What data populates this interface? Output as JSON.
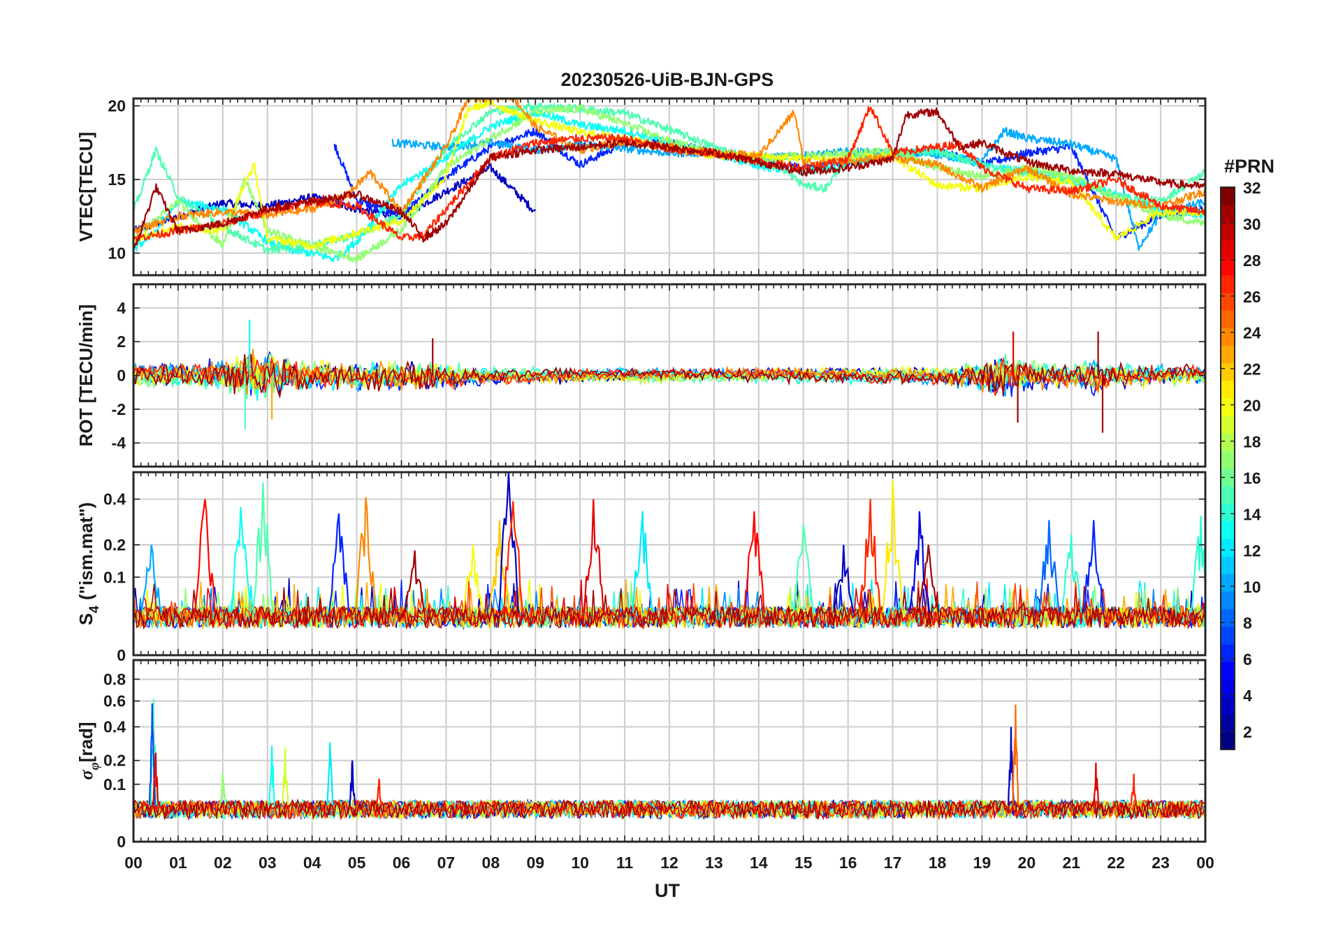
{
  "chart_data": [
    {
      "type": "line",
      "panel": "vtec",
      "title": "20230526-UiB-BJN-GPS",
      "ylabel": "VTEC[TECU]",
      "ylim": [
        8.5,
        20.5
      ],
      "yticks": [
        10,
        15,
        20
      ],
      "ytick_labels": [
        "10",
        "15",
        "20"
      ],
      "xlim": [
        0,
        24
      ],
      "grid": true,
      "series": [
        {
          "name": "PRN 3",
          "prn": 3,
          "x": [
            0,
            1,
            2,
            3,
            4,
            5,
            6,
            7,
            8,
            9
          ],
          "values": [
            11.5,
            12.5,
            13.4,
            13.2,
            13.8,
            13.0,
            12.5,
            14.2,
            15.8,
            12.8
          ]
        },
        {
          "name": "PRN 6",
          "prn": 6,
          "x": [
            4.5,
            5,
            6,
            7,
            8,
            9,
            10,
            11,
            12,
            13,
            14,
            15,
            16,
            17,
            18,
            19,
            20,
            21,
            22,
            23,
            24
          ],
          "values": [
            17.4,
            13.6,
            12.5,
            15.2,
            17.2,
            18.3,
            16.0,
            17.5,
            17.5,
            16.8,
            16.4,
            15.8,
            16.2,
            16.7,
            17.0,
            16.0,
            16.8,
            17.2,
            11.0,
            12.6,
            13.0
          ]
        },
        {
          "name": "PRN 10",
          "prn": 10,
          "x": [
            5.8,
            7,
            8,
            9,
            10,
            11,
            12,
            13,
            14,
            15,
            16,
            17,
            18,
            19,
            19.5,
            20,
            21,
            22,
            22.5,
            23,
            24
          ],
          "values": [
            17.5,
            17.2,
            17.5,
            17.0,
            17.4,
            17.1,
            16.8,
            16.8,
            16.5,
            16.6,
            16.9,
            16.8,
            16.7,
            16.2,
            18.3,
            17.8,
            17.4,
            16.4,
            10.4,
            12.6,
            13.5
          ]
        },
        {
          "name": "PRN 13",
          "prn": 13,
          "x": [
            0,
            0.5,
            1,
            2,
            3,
            3.5,
            4,
            4.5,
            5,
            6,
            7,
            8,
            9,
            10,
            11,
            12,
            13,
            14,
            15,
            16,
            17,
            18,
            19,
            20,
            21,
            22,
            23,
            24
          ],
          "values": [
            10.2,
            11.5,
            13.5,
            13.0,
            10.8,
            10.2,
            10.0,
            9.6,
            10.8,
            14.6,
            16.5,
            18.6,
            19.6,
            18.7,
            18.3,
            17.5,
            16.8,
            15.9,
            15.5,
            16.0,
            16.8,
            16.9,
            16.0,
            15.5,
            15.0,
            14.0,
            13.0,
            12.6
          ]
        },
        {
          "name": "PRN 15",
          "prn": 15,
          "x": [
            0,
            0.5,
            1,
            2,
            3,
            4,
            5,
            6,
            7,
            8,
            9,
            10,
            11,
            12,
            13,
            14,
            14.5,
            15,
            15.5,
            16,
            17,
            18,
            19,
            20,
            21,
            22,
            23,
            24
          ],
          "values": [
            12.8,
            17.0,
            13.8,
            11.8,
            10.2,
            10.6,
            11.2,
            12.6,
            17.2,
            19.6,
            20.0,
            19.8,
            19.5,
            18.4,
            17.2,
            16.3,
            15.8,
            14.6,
            14.4,
            16.6,
            16.7,
            16.9,
            16.0,
            15.4,
            14.9,
            13.9,
            13.5,
            15.5
          ]
        },
        {
          "name": "PRN 17",
          "prn": 17,
          "x": [
            0,
            1,
            2,
            2.5,
            3,
            4,
            5,
            6,
            7,
            8,
            9,
            10,
            11,
            12,
            13,
            14,
            15,
            16,
            17,
            18,
            19,
            20,
            21,
            22,
            23,
            24
          ],
          "values": [
            11.0,
            13.5,
            10.5,
            15.0,
            11.5,
            10.5,
            9.6,
            11.6,
            15.8,
            17.8,
            19.6,
            19.8,
            18.8,
            17.6,
            16.8,
            16.4,
            16.6,
            16.8,
            16.9,
            15.8,
            15.2,
            15.8,
            15.2,
            13.8,
            12.6,
            12.0
          ]
        },
        {
          "name": "PRN 20",
          "prn": 20,
          "x": [
            0,
            1,
            2,
            2.7,
            3,
            4,
            5,
            6,
            7,
            7.5,
            8,
            9,
            10,
            11,
            12,
            13,
            14,
            15,
            16,
            17,
            18,
            19,
            20,
            21,
            22,
            23,
            24
          ],
          "values": [
            11.0,
            11.8,
            11.5,
            16.0,
            11.0,
            10.5,
            11.4,
            12.2,
            15.2,
            19.8,
            20.2,
            19.0,
            18.2,
            17.8,
            17.2,
            16.6,
            16.6,
            16.4,
            16.4,
            16.6,
            14.6,
            14.4,
            15.2,
            14.8,
            11.0,
            12.8,
            12.8
          ]
        },
        {
          "name": "PRN 24",
          "prn": 24,
          "x": [
            0,
            1,
            2,
            3,
            4,
            4.8,
            5.3,
            6,
            7,
            7.5,
            8,
            8.5,
            9,
            10,
            11,
            12,
            13,
            14,
            14.8,
            15,
            16,
            17,
            18,
            19,
            20,
            21,
            22,
            23,
            24
          ],
          "values": [
            11.5,
            12.5,
            12.8,
            12.6,
            13.0,
            14.0,
            15.5,
            12.8,
            17.2,
            20.5,
            20.6,
            20.6,
            18.6,
            17.0,
            17.6,
            17.2,
            16.8,
            16.6,
            19.6,
            16.2,
            16.2,
            16.5,
            16.0,
            14.4,
            15.8,
            14.0,
            13.5,
            13.2,
            14.2
          ]
        },
        {
          "name": "PRN 27",
          "prn": 27,
          "x": [
            0,
            1,
            2,
            3,
            4,
            5,
            6,
            6.5,
            7,
            8,
            9,
            10,
            11,
            12,
            13,
            14,
            15,
            16,
            16.5,
            17,
            18,
            18.5,
            19,
            20,
            21,
            22,
            23,
            24
          ],
          "values": [
            11.0,
            11.5,
            12.0,
            12.8,
            13.5,
            13.2,
            11.0,
            11.2,
            13.0,
            16.5,
            17.5,
            17.8,
            17.8,
            17.0,
            16.8,
            16.2,
            15.8,
            16.4,
            20.0,
            16.8,
            17.2,
            17.4,
            15.8,
            14.4,
            14.2,
            15.0,
            13.2,
            12.8
          ]
        },
        {
          "name": "PRN 31",
          "prn": 31,
          "x": [
            0,
            0.5,
            1,
            2,
            3,
            4,
            5,
            6,
            6.5,
            7,
            8,
            9,
            10,
            11,
            12,
            13,
            14,
            15,
            16,
            17,
            17.3,
            18,
            18.5,
            19,
            20,
            21,
            22,
            23,
            24
          ],
          "values": [
            10.0,
            14.5,
            11.5,
            12.0,
            13.0,
            13.5,
            14.0,
            12.8,
            11.0,
            12.0,
            16.5,
            17.0,
            17.2,
            17.5,
            17.2,
            16.8,
            16.2,
            15.5,
            15.8,
            16.4,
            19.4,
            19.6,
            17.2,
            17.5,
            16.2,
            15.6,
            15.4,
            14.8,
            14.5
          ]
        }
      ]
    },
    {
      "type": "line",
      "panel": "rot",
      "ylabel": "ROT [TECU/min]",
      "ylim": [
        -5.4,
        5.4
      ],
      "yticks": [
        -4,
        -2,
        0,
        2,
        4
      ],
      "ytick_labels": [
        "-4",
        "-2",
        "0",
        "2",
        "4"
      ],
      "xlim": [
        0,
        24
      ],
      "grid": true,
      "baseline": 0,
      "envelope": {
        "x": [
          0,
          1,
          2,
          2.5,
          3,
          4,
          5,
          6,
          7,
          8,
          10,
          12,
          14,
          16,
          18,
          19,
          19.5,
          20,
          21,
          21.5,
          22,
          23,
          24
        ],
        "values": [
          0.8,
          0.7,
          1.0,
          1.6,
          1.5,
          0.9,
          0.9,
          1.0,
          0.8,
          0.5,
          0.4,
          0.35,
          0.4,
          0.4,
          0.5,
          0.9,
          1.4,
          0.9,
          0.7,
          1.2,
          0.7,
          0.6,
          0.6
        ]
      },
      "series": [
        {
          "name": "PRN 13 spike",
          "prn": 13,
          "x": [
            2.6
          ],
          "values": [
            3.3
          ]
        },
        {
          "name": "PRN 15 spike",
          "prn": 15,
          "x": [
            2.5
          ],
          "values": [
            -3.2
          ]
        },
        {
          "name": "PRN 23 spike",
          "prn": 23,
          "x": [
            3.1
          ],
          "values": [
            -2.6
          ]
        },
        {
          "name": "PRN 31 spike",
          "prn": 31,
          "x": [
            6.7
          ],
          "values": [
            2.2
          ]
        },
        {
          "name": "PRN 29 spike",
          "prn": 29,
          "x": [
            19.7
          ],
          "values": [
            2.6
          ]
        },
        {
          "name": "PRN 31 spike b",
          "prn": 31,
          "x": [
            19.8
          ],
          "values": [
            -2.8
          ]
        },
        {
          "name": "PRN 31 spike c",
          "prn": 31,
          "x": [
            21.6
          ],
          "values": [
            2.6
          ]
        },
        {
          "name": "PRN 31 spike d",
          "prn": 31,
          "x": [
            21.7
          ],
          "values": [
            -3.4
          ]
        }
      ]
    },
    {
      "type": "line",
      "panel": "s4",
      "ylabel_main": "S",
      "ylabel_sub": "4",
      "ylabel_rest": "(\"ism.mat\")",
      "ylim": [
        0,
        0.55
      ],
      "yscale": "sqrt",
      "yticks": [
        0,
        0.1,
        0.2,
        0.4
      ],
      "ytick_labels": [
        "0",
        "0.1",
        "0.2",
        "0.4"
      ],
      "xlim": [
        0,
        24
      ],
      "grid": true,
      "baseline": 0.03,
      "peaks": [
        {
          "x": 0.4,
          "y": 0.2,
          "prn": 10
        },
        {
          "x": 1.6,
          "y": 0.4,
          "prn": 28
        },
        {
          "x": 2.4,
          "y": 0.36,
          "prn": 13
        },
        {
          "x": 2.9,
          "y": 0.49,
          "prn": 15
        },
        {
          "x": 4.6,
          "y": 0.33,
          "prn": 6
        },
        {
          "x": 5.2,
          "y": 0.41,
          "prn": 24
        },
        {
          "x": 6.3,
          "y": 0.18,
          "prn": 31
        },
        {
          "x": 7.6,
          "y": 0.2,
          "prn": 20
        },
        {
          "x": 8.2,
          "y": 0.3,
          "prn": 22
        },
        {
          "x": 8.4,
          "y": 0.55,
          "prn": 3
        },
        {
          "x": 8.5,
          "y": 0.39,
          "prn": 27
        },
        {
          "x": 10.3,
          "y": 0.4,
          "prn": 29
        },
        {
          "x": 11.4,
          "y": 0.34,
          "prn": 12
        },
        {
          "x": 13.9,
          "y": 0.34,
          "prn": 28
        },
        {
          "x": 15.0,
          "y": 0.28,
          "prn": 15
        },
        {
          "x": 15.9,
          "y": 0.2,
          "prn": 3
        },
        {
          "x": 16.5,
          "y": 0.4,
          "prn": 27
        },
        {
          "x": 17.0,
          "y": 0.5,
          "prn": 21
        },
        {
          "x": 17.6,
          "y": 0.34,
          "prn": 4
        },
        {
          "x": 17.8,
          "y": 0.2,
          "prn": 31
        },
        {
          "x": 20.5,
          "y": 0.3,
          "prn": 8
        },
        {
          "x": 21.0,
          "y": 0.24,
          "prn": 14
        },
        {
          "x": 21.5,
          "y": 0.3,
          "prn": 6
        },
        {
          "x": 23.9,
          "y": 0.32,
          "prn": 14
        }
      ]
    },
    {
      "type": "line",
      "panel": "sigma_phi",
      "ylabel": "σ",
      "ylabel_sub": "φ",
      "ylabel_rest": "[rad]",
      "ylim": [
        0,
        1.0
      ],
      "yscale": "sqrt",
      "yticks": [
        0,
        0.1,
        0.2,
        0.4,
        0.6,
        0.8
      ],
      "ytick_labels": [
        "0",
        "0.1",
        "0.2",
        "0.4",
        "0.6",
        "0.8"
      ],
      "xlim": [
        0,
        24
      ],
      "grid": true,
      "baseline": 0.04,
      "peaks": [
        {
          "x": 0.45,
          "y": 0.62,
          "prn": 15
        },
        {
          "x": 0.42,
          "y": 0.58,
          "prn": 7
        },
        {
          "x": 0.5,
          "y": 0.24,
          "prn": 29
        },
        {
          "x": 2.0,
          "y": 0.14,
          "prn": 17
        },
        {
          "x": 3.1,
          "y": 0.28,
          "prn": 13
        },
        {
          "x": 3.4,
          "y": 0.27,
          "prn": 19
        },
        {
          "x": 4.4,
          "y": 0.3,
          "prn": 12
        },
        {
          "x": 4.9,
          "y": 0.2,
          "prn": 3
        },
        {
          "x": 5.5,
          "y": 0.12,
          "prn": 27
        },
        {
          "x": 19.65,
          "y": 0.4,
          "prn": 3
        },
        {
          "x": 19.75,
          "y": 0.57,
          "prn": 25
        },
        {
          "x": 21.55,
          "y": 0.19,
          "prn": 29
        },
        {
          "x": 22.4,
          "y": 0.14,
          "prn": 27
        }
      ]
    }
  ],
  "x_axis": {
    "label": "UT",
    "tick_labels": [
      "00",
      "01",
      "02",
      "03",
      "04",
      "05",
      "06",
      "07",
      "08",
      "09",
      "10",
      "11",
      "12",
      "13",
      "14",
      "15",
      "16",
      "17",
      "18",
      "19",
      "20",
      "21",
      "22",
      "23",
      "00"
    ]
  },
  "colorbar": {
    "title": "#PRN",
    "min": 1,
    "max": 32,
    "tick_labels": [
      "2",
      "4",
      "6",
      "8",
      "10",
      "12",
      "14",
      "16",
      "18",
      "20",
      "22",
      "24",
      "26",
      "28",
      "30",
      "32"
    ],
    "tick_values": [
      2,
      4,
      6,
      8,
      10,
      12,
      14,
      16,
      18,
      20,
      22,
      24,
      26,
      28,
      30,
      32
    ],
    "colormap": "jet"
  }
}
